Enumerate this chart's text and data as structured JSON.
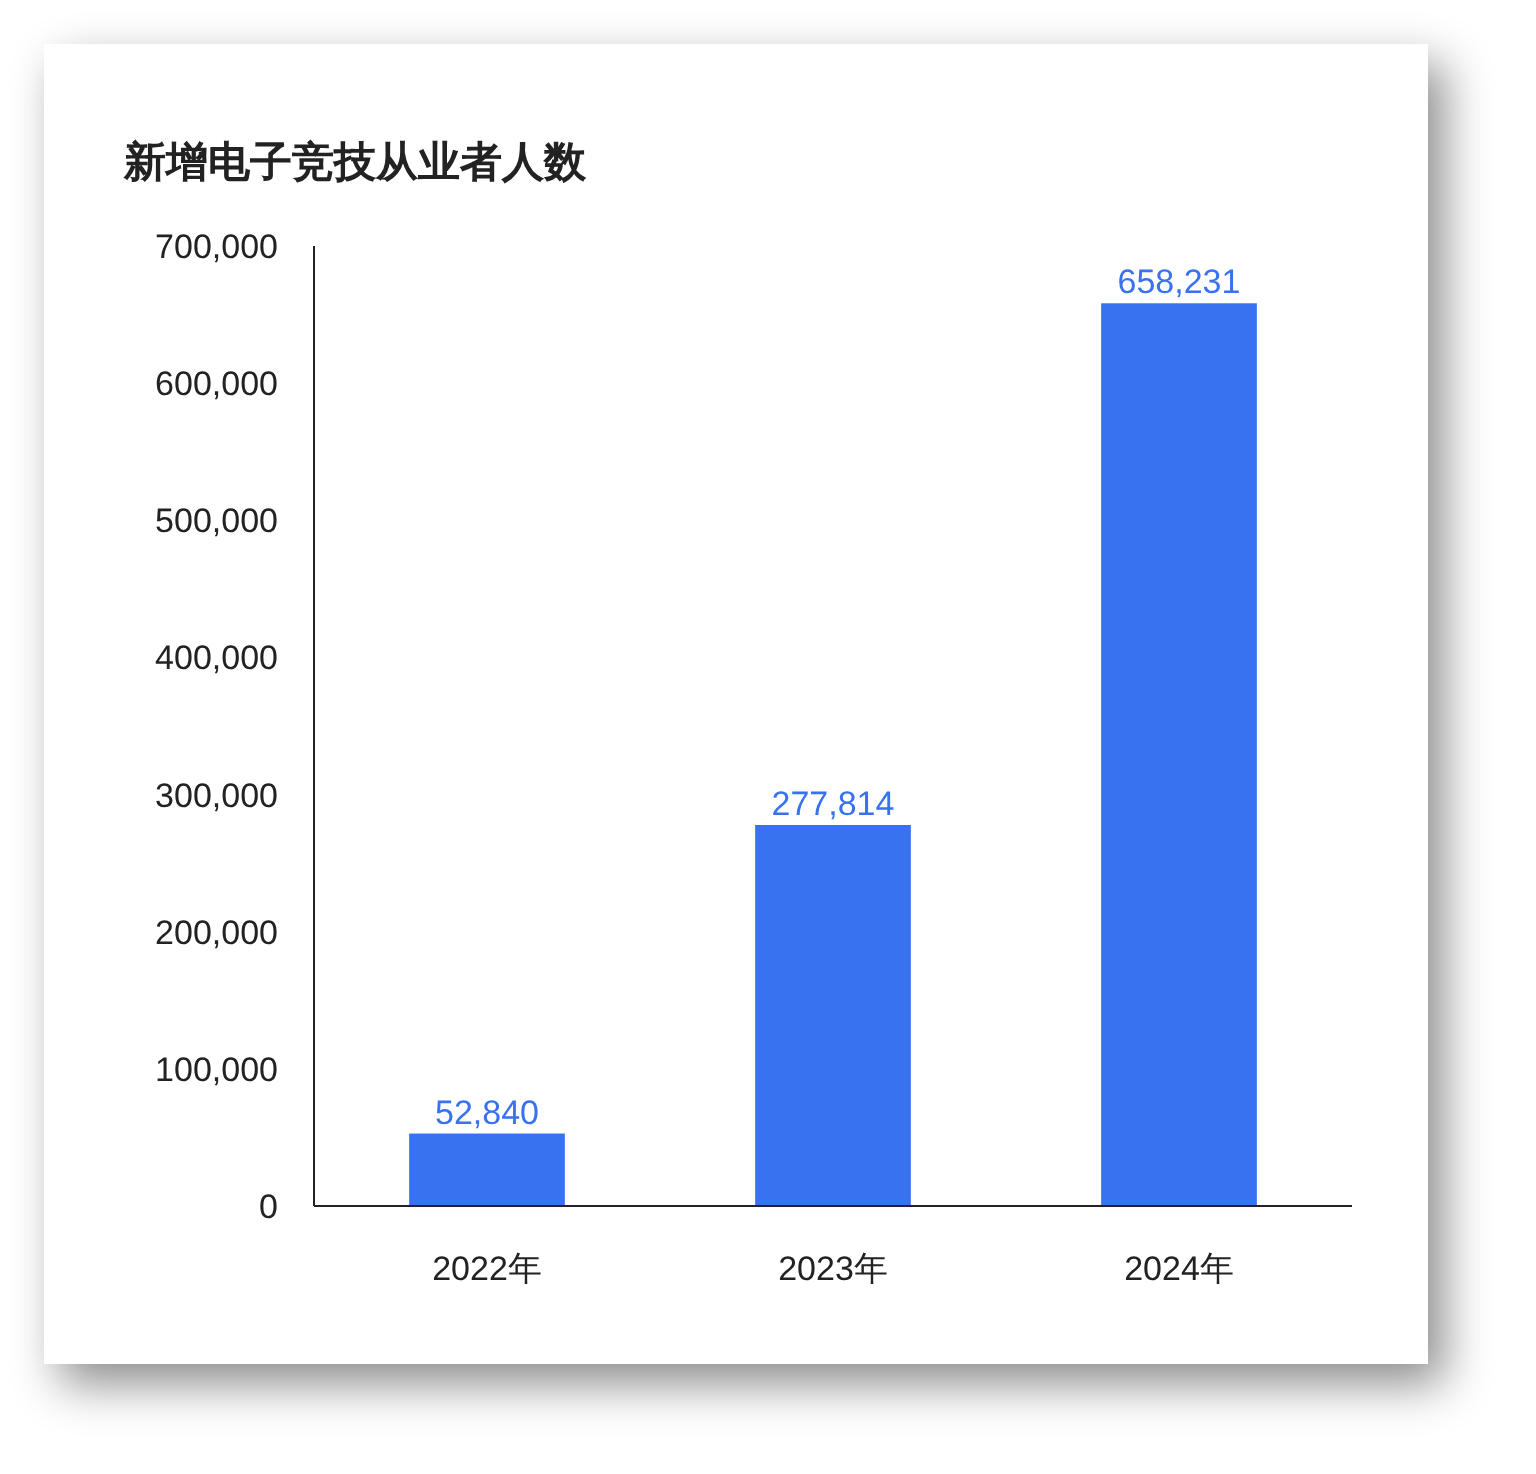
{
  "chart_data": {
    "type": "bar",
    "title": "新增电子竞技从业者人数",
    "categories": [
      "2022年",
      "2023年",
      "2024年"
    ],
    "values": [
      52840,
      277814,
      658231
    ],
    "value_labels": [
      "52,840",
      "277,814",
      "658,231"
    ],
    "color": "#3872f0",
    "ylim": [
      0,
      700000
    ],
    "yticks": [
      0,
      {
        "value": 100000,
        "label": "100,000"
      },
      {
        "value": 200000,
        "label": "200,000"
      },
      {
        "value": 300000,
        "label": "300,000"
      },
      {
        "value": 400000,
        "label": "400,000"
      },
      {
        "value": 500000,
        "label": "500,000"
      },
      {
        "value": 600000,
        "label": "600,000"
      },
      {
        "value": 700000,
        "label": "700,000"
      }
    ],
    "grid": false
  }
}
